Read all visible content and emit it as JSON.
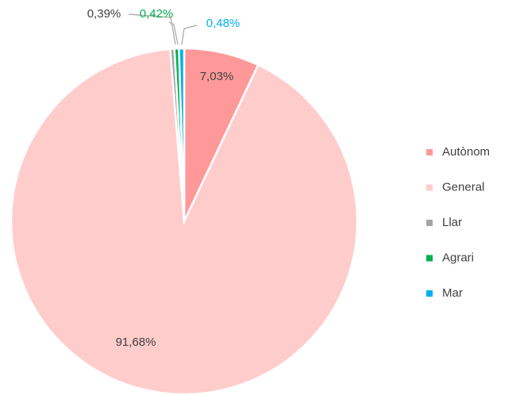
{
  "chart_data": {
    "type": "pie",
    "categories": [
      "Autònom",
      "General",
      "Llar",
      "Agrari",
      "Mar"
    ],
    "values": [
      7.03,
      91.68,
      0.39,
      0.42,
      0.48
    ],
    "value_labels": [
      "7,03%",
      "91,68%",
      "0,39%",
      "0,42%",
      "0,48%"
    ],
    "colors": [
      "#ff9999",
      "#ffcccc",
      "#a5a5a5",
      "#00b050",
      "#00b0f0"
    ],
    "label_colors": [
      "#404040",
      "#404040",
      "#404040",
      "#00b050",
      "#00b0f0"
    ],
    "legend": "right"
  }
}
